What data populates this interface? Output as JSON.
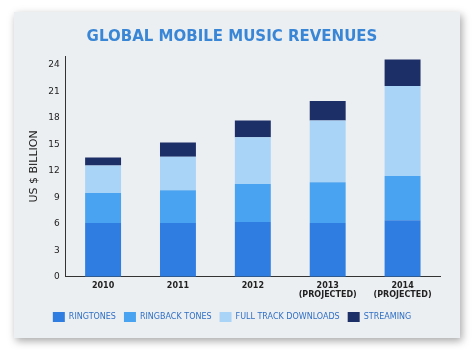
{
  "chart_data": {
    "type": "bar",
    "title": "GLOBAL MOBILE MUSIC REVENUES",
    "y_label": "US $ BILLION",
    "categories": [
      "2010",
      "2011",
      "2012",
      "2013 (PROJECTED)",
      "2014 (PROJECTED)"
    ],
    "series": [
      {
        "name": "RINGTONES",
        "color": "#2f7de1",
        "values": [
          6.1,
          6.1,
          6.2,
          6.1,
          6.4
        ]
      },
      {
        "name": "RINGBACK TONES",
        "color": "#4aa3f0",
        "values": [
          3.4,
          3.7,
          4.3,
          4.6,
          5.0
        ]
      },
      {
        "name": "FULL TRACK DOWNLOADS",
        "color": "#a9d4f7",
        "values": [
          3.1,
          3.8,
          5.3,
          7.0,
          10.2
        ]
      },
      {
        "name": "STREAMING",
        "color": "#1c2f66",
        "values": [
          0.9,
          1.6,
          1.9,
          2.2,
          3.0
        ]
      }
    ],
    "stacked": true,
    "ylim": [
      0,
      25
    ],
    "yticks": [
      0,
      3,
      6,
      9,
      12,
      15,
      18,
      21,
      24
    ],
    "grid": false,
    "legend": "bottom"
  }
}
